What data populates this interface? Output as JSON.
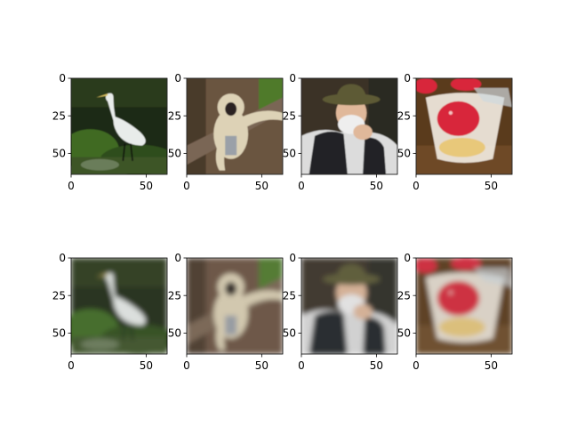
{
  "figure": {
    "rows": 2,
    "cols": 4,
    "background": "#ffffff",
    "x_ticks": [
      "0",
      "50"
    ],
    "y_ticks": [
      "0",
      "25",
      "50"
    ],
    "image_extent": [
      0,
      64
    ],
    "images": [
      {
        "row": 0,
        "subject": "white egret standing in green marsh",
        "style": "sharp"
      },
      {
        "row": 0,
        "subject": "light-furred gibbon on a tree branch",
        "style": "sharp"
      },
      {
        "row": 0,
        "subject": "elderly bearded man in green hat and dark vest",
        "style": "sharp"
      },
      {
        "row": 0,
        "subject": "strawberry dessert in a glass cup",
        "style": "sharp"
      },
      {
        "row": 1,
        "subject": "white egret standing in green marsh",
        "style": "blurry"
      },
      {
        "row": 1,
        "subject": "light-furred gibbon on a tree branch",
        "style": "blurry"
      },
      {
        "row": 1,
        "subject": "elderly bearded man in green hat and dark vest",
        "style": "blurry"
      },
      {
        "row": 1,
        "subject": "strawberry dessert in a glass cup",
        "style": "blurry"
      }
    ],
    "colors": {
      "egret_bg": "#1f2a14",
      "egret_grass": "#3f6b24",
      "egret_bird": "#e8ecea",
      "gibbon_bg": "#6b5440",
      "gibbon_fur": "#ddd2b6",
      "gibbon_leaf": "#4f7a2a",
      "man_bg": "#3a3226",
      "man_hat": "#5d5a34",
      "man_face": "#e0b89a",
      "man_beard": "#eeeeee",
      "man_vest": "#202426",
      "dessert_bg": "#5a3a1c",
      "dessert_cream": "#f4eee4",
      "dessert_berry": "#d8283a",
      "dessert_cake": "#e8c87a"
    }
  }
}
